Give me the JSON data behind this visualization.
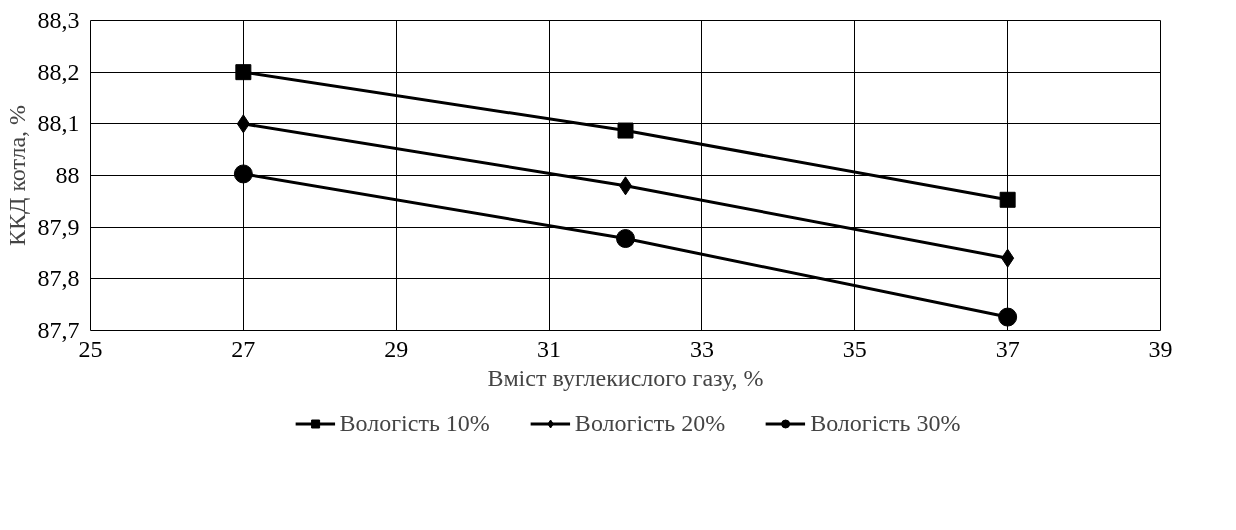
{
  "chart_data": {
    "type": "line",
    "xlabel": "Вміст вуглекислого газу, %",
    "ylabel": "ККД котла, %",
    "x": [
      27,
      32,
      37
    ],
    "series": [
      {
        "name": "Вологість 10%",
        "color": "#000000",
        "marker": "square",
        "values": [
          88.2,
          88.087,
          87.953
        ]
      },
      {
        "name": "Вологість 20%",
        "color": "#000000",
        "marker": "diamond",
        "values": [
          88.1,
          87.98,
          87.84
        ]
      },
      {
        "name": "Вологість 30%",
        "color": "#000000",
        "marker": "circle",
        "values": [
          88.003,
          87.878,
          87.726
        ]
      }
    ],
    "xlim": [
      25,
      39
    ],
    "xticks": [
      25,
      27,
      29,
      31,
      33,
      35,
      37,
      39
    ],
    "ylim": [
      87.7,
      88.3
    ],
    "yticks": [
      {
        "value": 87.7,
        "label": "87,7"
      },
      {
        "value": 87.8,
        "label": "87,8"
      },
      {
        "value": 87.9,
        "label": "87,9"
      },
      {
        "value": 88,
        "label": "88"
      },
      {
        "value": 88.1,
        "label": "88,1"
      },
      {
        "value": 88.2,
        "label": "88,2"
      },
      {
        "value": 88.3,
        "label": "88,3"
      }
    ],
    "grid": true,
    "legend": "bottom",
    "line_style": "solid"
  }
}
